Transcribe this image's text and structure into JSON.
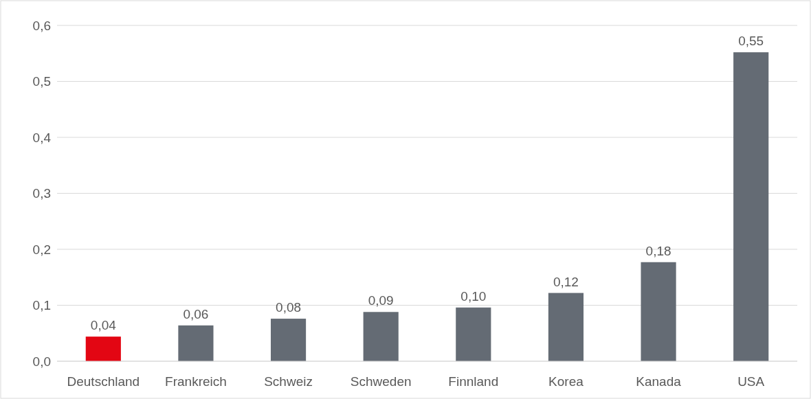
{
  "chart_data": {
    "type": "bar",
    "categories": [
      "Deutschland",
      "Frankreich",
      "Schweiz",
      "Schweden",
      "Finnland",
      "Korea",
      "Kanada",
      "USA"
    ],
    "values": [
      0.044,
      0.064,
      0.076,
      0.088,
      0.096,
      0.122,
      0.177,
      0.552
    ],
    "colors": [
      "#e30613",
      "#646b74",
      "#646b74",
      "#646b74",
      "#646b74",
      "#646b74",
      "#646b74",
      "#646b74"
    ],
    "value_labels": [
      "0,04",
      "0,06",
      "0,08",
      "0,09",
      "0,10",
      "0,12",
      "0,18",
      "0,55"
    ],
    "ylim": [
      0,
      0.6
    ],
    "yticks": [
      {
        "value": 0,
        "label": "0,0"
      },
      {
        "value": 0.1,
        "label": "0,1"
      },
      {
        "value": 0.2,
        "label": "0,2"
      },
      {
        "value": 0.3,
        "label": "0,3"
      },
      {
        "value": 0.4,
        "label": "0,4"
      },
      {
        "value": 0.5,
        "label": "0,5"
      },
      {
        "value": 0.6,
        "label": "0,6"
      }
    ],
    "grid": "y"
  }
}
